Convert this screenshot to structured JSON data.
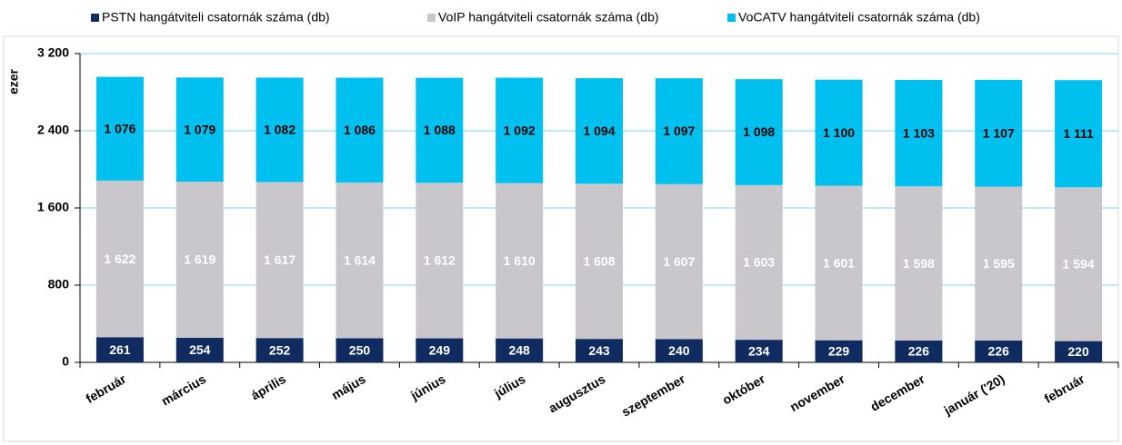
{
  "chart_data": {
    "type": "stacked_bar",
    "y_label": "ezer",
    "categories": [
      "február",
      "március",
      "április",
      "május",
      "június",
      "július",
      "augusztus",
      "szeptember",
      "október",
      "november",
      "december",
      "január ('20)",
      "február"
    ],
    "series": [
      {
        "name": "PSTN hangátviteli csatornák száma (db)",
        "color": "#0f2b5f",
        "label_color": "#ffffff",
        "values": [
          261,
          254,
          252,
          250,
          249,
          248,
          243,
          240,
          234,
          229,
          226,
          226,
          220
        ],
        "value_labels": [
          "261",
          "254",
          "252",
          "250",
          "249",
          "248",
          "243",
          "240",
          "234",
          "229",
          "226",
          "226",
          "220"
        ]
      },
      {
        "name": "VoIP hangátviteli csatornák száma (db)",
        "color": "#c9c7cc",
        "label_color": "#ffffff",
        "values": [
          1622,
          1619,
          1617,
          1614,
          1612,
          1610,
          1608,
          1607,
          1603,
          1601,
          1598,
          1595,
          1594
        ],
        "value_labels": [
          "1 622",
          "1 619",
          "1 617",
          "1 614",
          "1 612",
          "1 610",
          "1 608",
          "1 607",
          "1 603",
          "1 601",
          "1 598",
          "1 595",
          "1 594"
        ]
      },
      {
        "name": "VoCATV hangátviteli csatornák száma (db)",
        "color": "#00c0f0",
        "label_color": "#000000",
        "values": [
          1076,
          1079,
          1082,
          1086,
          1088,
          1092,
          1094,
          1097,
          1098,
          1100,
          1103,
          1107,
          1111
        ],
        "value_labels": [
          "1 076",
          "1 079",
          "1 082",
          "1 086",
          "1 088",
          "1 092",
          "1 094",
          "1 097",
          "1 098",
          "1 100",
          "1 103",
          "1 107",
          "1 111"
        ]
      }
    ],
    "ylim": [
      0,
      3200
    ],
    "yticks": [
      0,
      800,
      {
        "value": 1600,
        "label": "1 600"
      },
      {
        "value": 2400,
        "label": "2 400"
      },
      {
        "value": 3200,
        "label": "3 200"
      }
    ],
    "grid": true,
    "legend": "top"
  }
}
